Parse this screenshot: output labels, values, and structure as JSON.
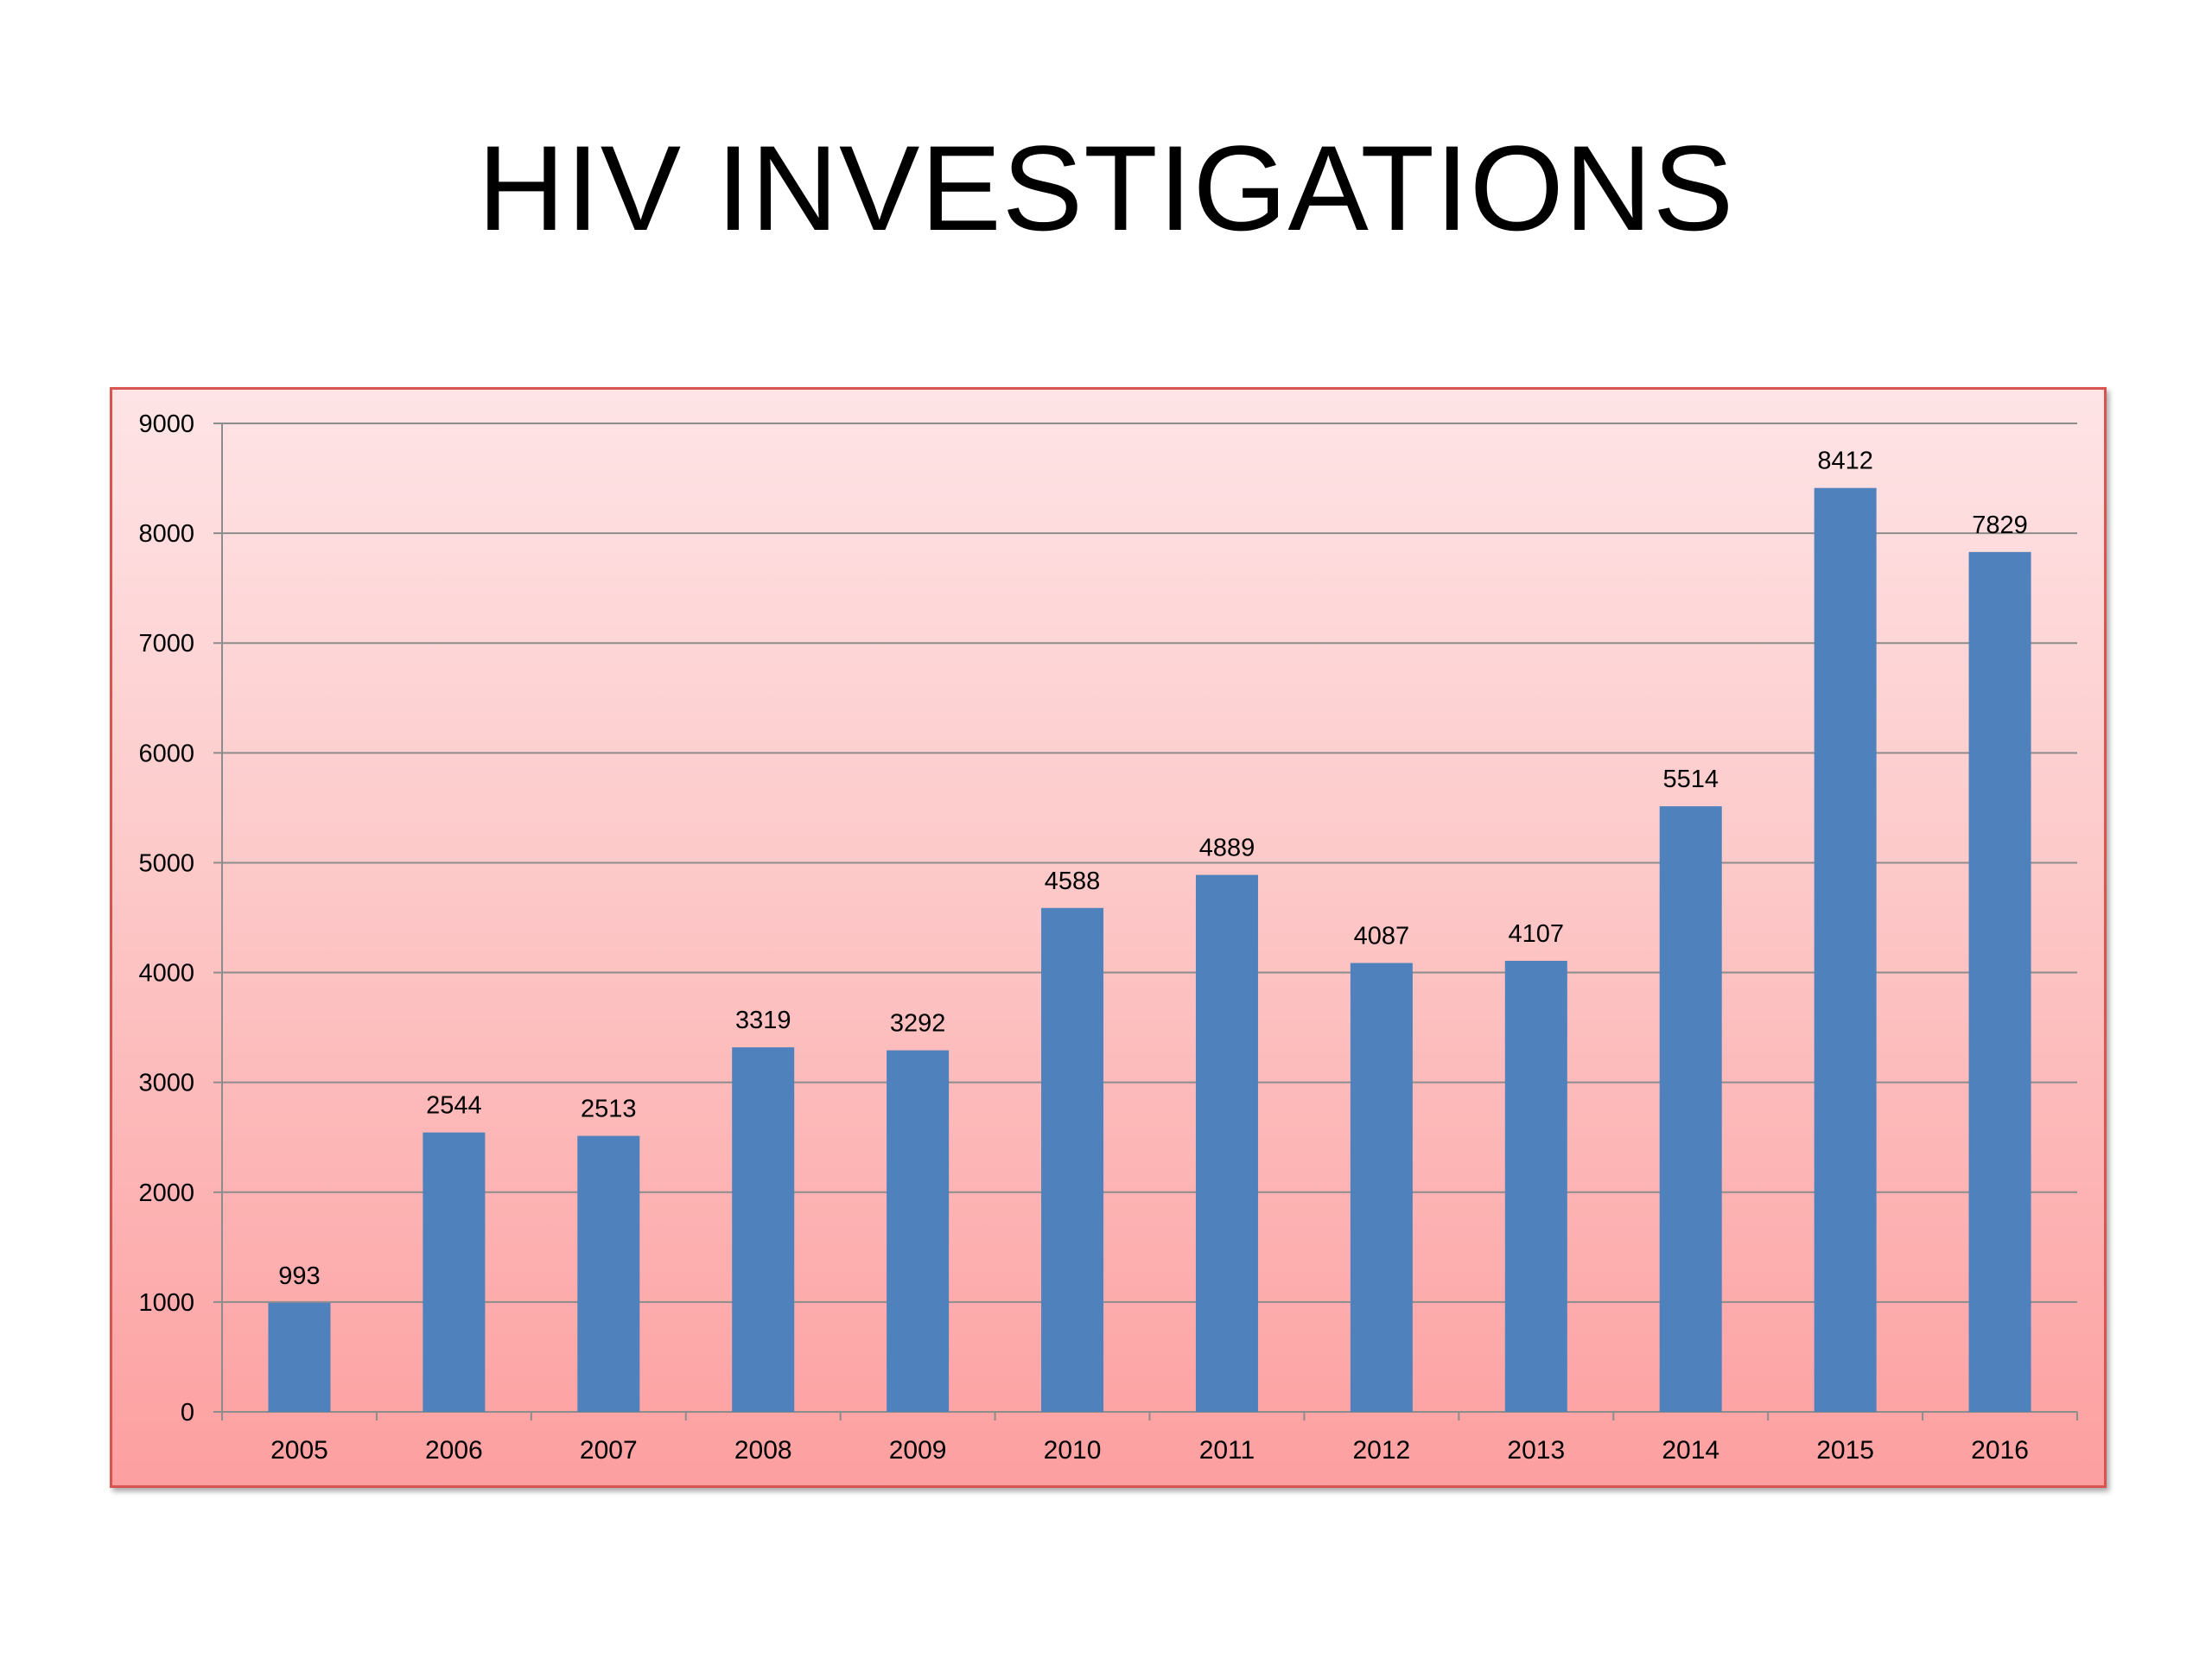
{
  "slide": {
    "title": "HIV INVESTIGATIONS"
  },
  "colors": {
    "bar": "#4f81bd",
    "grid": "#8c8c8c",
    "axis": "#8c8c8c",
    "text": "#000000",
    "frame_border": "#d9534f",
    "frame_top": "#fee4e6",
    "frame_bottom": "#fd9fa0"
  },
  "chart_data": {
    "type": "bar",
    "title": "",
    "xlabel": "",
    "ylabel": "",
    "categories": [
      "2005",
      "2006",
      "2007",
      "2008",
      "2009",
      "2010",
      "2011",
      "2012",
      "2013",
      "2014",
      "2015",
      "2016"
    ],
    "values": [
      993,
      2544,
      2513,
      3319,
      3292,
      4588,
      4889,
      4087,
      4107,
      5514,
      8412,
      7829
    ],
    "data_labels": [
      "993",
      "2544",
      "2513",
      "3319",
      "3292",
      "4588",
      "4889",
      "4087",
      "4107",
      "5514",
      "8412",
      "7829"
    ],
    "ylim": [
      0,
      9000
    ],
    "yticks": [
      0,
      1000,
      2000,
      3000,
      4000,
      5000,
      6000,
      7000,
      8000,
      9000
    ],
    "ytick_labels": [
      "0",
      "1000",
      "2000",
      "3000",
      "4000",
      "5000",
      "6000",
      "7000",
      "8000",
      "9000"
    ],
    "grid": true,
    "legend": "none"
  }
}
